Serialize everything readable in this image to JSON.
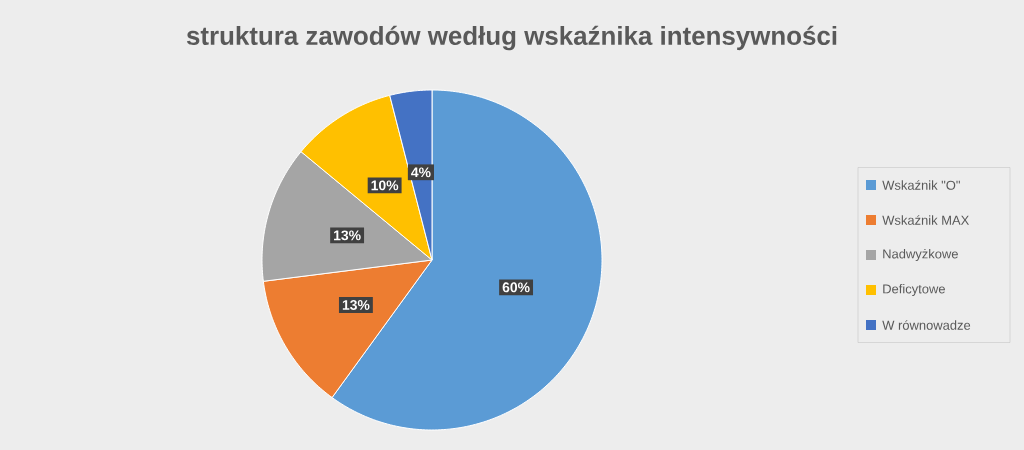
{
  "chart_data": {
    "type": "pie",
    "title": "struktura zawodów według wskaźnika intensywności",
    "categories": [
      "Wskaźnik \"O\"",
      "Wskaźnik MAX",
      "Nadwyżkowe",
      "Deficytowe",
      "W równowadze"
    ],
    "values": [
      60,
      13,
      13,
      10,
      4
    ],
    "colors": [
      "#5b9bd5",
      "#ed7d31",
      "#a5a5a5",
      "#ffc000",
      "#4472c4"
    ],
    "value_labels": [
      "60%",
      "13%",
      "13%",
      "10%",
      "4%"
    ],
    "legend": "right"
  }
}
